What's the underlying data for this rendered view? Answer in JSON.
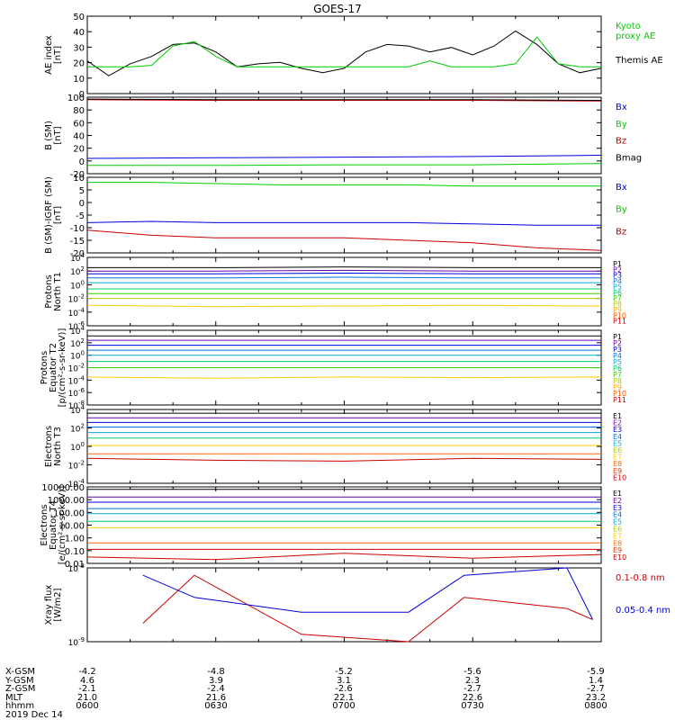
{
  "title": "GOES-17",
  "date": "2019 Dec 14",
  "colors": {
    "black": "#000000",
    "green": "#00cc00",
    "blue": "#0000dd",
    "red": "#cc0000"
  },
  "chart_data": [
    {
      "type": "line",
      "ylabel": "AE index\n[nT]",
      "yticks": [
        "0",
        "10",
        "20",
        "30",
        "40",
        "50"
      ],
      "ylim": [
        0,
        52
      ],
      "x": [
        0,
        5,
        10,
        15,
        20,
        25,
        30,
        35,
        40,
        45,
        50,
        55,
        60,
        65,
        70,
        75,
        80,
        85,
        90,
        95,
        100,
        105,
        110,
        115,
        120
      ],
      "series": [
        {
          "name": "Themis AE",
          "color": "black",
          "values": [
            22,
            12,
            20,
            25,
            33,
            34,
            28,
            18,
            20,
            21,
            17,
            14,
            17,
            28,
            33,
            32,
            28,
            31,
            26,
            32,
            42,
            33,
            20,
            14,
            17
          ]
        },
        {
          "name": "Kyoto proxy AE",
          "color": "green",
          "values": [
            18,
            18,
            18,
            19,
            32,
            35,
            25,
            18,
            18,
            18,
            18,
            18,
            18,
            18,
            18,
            18,
            22,
            18,
            18,
            18,
            20,
            38,
            20,
            18,
            18
          ]
        }
      ],
      "legend": [
        {
          "text": "Kyoto\nproxy AE",
          "color": "green"
        },
        {
          "text": "Themis AE",
          "color": "black"
        }
      ]
    },
    {
      "type": "line",
      "ylabel": "B (SM)\n[nT]",
      "yticks": [
        "-20",
        "0",
        "20",
        "40",
        "60",
        "80",
        "100"
      ],
      "ylim": [
        -20,
        100
      ],
      "x": [
        0,
        30,
        60,
        90,
        120
      ],
      "series": [
        {
          "name": "Bx",
          "color": "blue",
          "values": [
            4,
            5,
            6,
            7,
            9
          ]
        },
        {
          "name": "By",
          "color": "green",
          "values": [
            -7,
            -7,
            -6,
            -6,
            -4
          ]
        },
        {
          "name": "Bz",
          "color": "red",
          "values": [
            96,
            95,
            95,
            95,
            94
          ]
        },
        {
          "name": "Bmag",
          "color": "black",
          "values": [
            97,
            96,
            96,
            96,
            95
          ]
        }
      ],
      "legend": [
        {
          "text": "Bx",
          "color": "blue"
        },
        {
          "text": "By",
          "color": "green"
        },
        {
          "text": "Bz",
          "color": "red"
        },
        {
          "text": "Bmag",
          "color": "black"
        }
      ]
    },
    {
      "type": "line",
      "ylabel": "B (SM)-IGRF (SM)\n[nT]",
      "yticks": [
        "-20",
        "-15",
        "-10",
        "-5",
        "0",
        "5",
        "10"
      ],
      "ylim": [
        -20,
        10
      ],
      "x": [
        0,
        15,
        30,
        45,
        60,
        75,
        90,
        105,
        120
      ],
      "series": [
        {
          "name": "Bx",
          "color": "blue",
          "values": [
            -8,
            -7.5,
            -8,
            -8,
            -8,
            -8,
            -8.5,
            -9,
            -9
          ]
        },
        {
          "name": "By",
          "color": "green",
          "values": [
            8,
            8,
            7.5,
            7,
            7,
            7,
            6.5,
            6.5,
            6.5
          ]
        },
        {
          "name": "Bz",
          "color": "red",
          "values": [
            -11,
            -13,
            -14,
            -14,
            -14,
            -15,
            -16,
            -18,
            -19
          ]
        }
      ],
      "legend": [
        {
          "text": "Bx",
          "color": "blue"
        },
        {
          "text": "By",
          "color": "green"
        },
        {
          "text": "Bz",
          "color": "red"
        }
      ]
    },
    {
      "type": "line",
      "ylabel": "Protons\nNorth T1",
      "log": true,
      "yticks": [
        "10^-6",
        "10^-4",
        "10^-2",
        "10^0",
        "10^2",
        "10^4"
      ],
      "ylim": [
        -6,
        4
      ],
      "x": [
        0,
        30,
        60,
        90,
        120
      ],
      "series": [
        {
          "name": "P1",
          "color": "#000000",
          "values": [
            2.5,
            2.5,
            2.6,
            2.5,
            2.5
          ]
        },
        {
          "name": "P2",
          "color": "#6a00a8",
          "values": [
            2.0,
            2.0,
            2.1,
            2.0,
            2.0
          ]
        },
        {
          "name": "P3",
          "color": "#0000dd",
          "values": [
            1.6,
            1.6,
            1.7,
            1.6,
            1.6
          ]
        },
        {
          "name": "P4",
          "color": "#0070dd",
          "values": [
            1.0,
            1.0,
            1.1,
            1.0,
            1.0
          ]
        },
        {
          "name": "P5",
          "color": "#00aadd",
          "values": [
            0.3,
            0.3,
            0.3,
            0.3,
            0.3
          ]
        },
        {
          "name": "P6",
          "color": "#00cc66",
          "values": [
            -0.6,
            -0.6,
            -0.6,
            -0.6,
            -0.6
          ]
        },
        {
          "name": "P7",
          "color": "#33cc00",
          "values": [
            -1.3,
            -1.3,
            -1.3,
            -1.3,
            -1.3
          ]
        },
        {
          "name": "P8",
          "color": "#aacc00",
          "values": [
            -2.0,
            -2.0,
            -2.0,
            -2.0,
            -2.0
          ]
        },
        {
          "name": "P9",
          "color": "#ffcc00",
          "values": [
            -3.0,
            -3.2,
            -3.1,
            -3.0,
            -3.1
          ]
        }
      ],
      "legend": [
        {
          "text": "P1",
          "color": "#000000"
        },
        {
          "text": "P2",
          "color": "#6a00a8"
        },
        {
          "text": "P3",
          "color": "#0000dd"
        },
        {
          "text": "P4",
          "color": "#0070dd"
        },
        {
          "text": "P5",
          "color": "#00aadd"
        },
        {
          "text": "P6",
          "color": "#00cc66"
        },
        {
          "text": "P7",
          "color": "#33cc00"
        },
        {
          "text": "P8",
          "color": "#aacc00"
        },
        {
          "text": "P9",
          "color": "#ffaa00"
        },
        {
          "text": "P10",
          "color": "#ee5500"
        },
        {
          "text": "P11",
          "color": "#cc0000"
        }
      ]
    },
    {
      "type": "line",
      "ylabel": "Protons\nEquator T2\n[p/(cm²-s-sr-keV)]",
      "log": true,
      "yticks": [
        "10^-8",
        "10^-6",
        "10^-4",
        "10^-2",
        "10^0",
        "10^2",
        "10^4"
      ],
      "ylim": [
        -8,
        4
      ],
      "x": [
        0,
        30,
        60,
        90,
        120
      ],
      "series": [
        {
          "name": "P1",
          "color": "#000000",
          "values": [
            3.1,
            3.1,
            3.1,
            3.1,
            3.1
          ]
        },
        {
          "name": "P2",
          "color": "#6a00a8",
          "values": [
            2.4,
            2.4,
            2.4,
            2.4,
            2.4
          ]
        },
        {
          "name": "P3",
          "color": "#0000dd",
          "values": [
            1.6,
            1.6,
            1.6,
            1.6,
            1.6
          ]
        },
        {
          "name": "P4",
          "color": "#0070dd",
          "values": [
            0.8,
            0.8,
            0.8,
            0.8,
            0.8
          ]
        },
        {
          "name": "P5",
          "color": "#00aadd",
          "values": [
            0.0,
            0.0,
            0.0,
            0.0,
            0.0
          ]
        },
        {
          "name": "P6",
          "color": "#00cc66",
          "values": [
            -1.0,
            -1.0,
            -1.0,
            -1.0,
            -1.0
          ]
        },
        {
          "name": "P7",
          "color": "#33cc00",
          "values": [
            -2.0,
            -2.0,
            -2.0,
            -2.0,
            -2.0
          ]
        },
        {
          "name": "P8",
          "color": "#ffcc00",
          "values": [
            -3.5,
            -3.7,
            -3.5,
            -3.6,
            -3.5
          ]
        }
      ],
      "legend": [
        {
          "text": "P1",
          "color": "#000000"
        },
        {
          "text": "P2",
          "color": "#6a00a8"
        },
        {
          "text": "P3",
          "color": "#0000dd"
        },
        {
          "text": "P4",
          "color": "#0070dd"
        },
        {
          "text": "P5",
          "color": "#00aadd"
        },
        {
          "text": "P6",
          "color": "#00cc66"
        },
        {
          "text": "P7",
          "color": "#33cc00"
        },
        {
          "text": "P8",
          "color": "#aacc00"
        },
        {
          "text": "P9",
          "color": "#ffaa00"
        },
        {
          "text": "P10",
          "color": "#ee5500"
        },
        {
          "text": "P11",
          "color": "#cc0000"
        }
      ]
    },
    {
      "type": "line",
      "ylabel": "Electrons\nNorth T3",
      "log": true,
      "yticks": [
        "10^-4",
        "10^-2",
        "10^0",
        "10^2",
        "10^4"
      ],
      "ylim": [
        -4,
        4
      ],
      "x": [
        0,
        30,
        60,
        90,
        120
      ],
      "series": [
        {
          "name": "E1",
          "color": "#000000",
          "values": [
            3.6,
            3.6,
            3.6,
            3.6,
            3.6
          ]
        },
        {
          "name": "E2",
          "color": "#6a00a8",
          "values": [
            3.1,
            3.1,
            3.1,
            3.1,
            3.1
          ]
        },
        {
          "name": "E3",
          "color": "#0000dd",
          "values": [
            2.6,
            2.6,
            2.6,
            2.6,
            2.6
          ]
        },
        {
          "name": "E4",
          "color": "#0070dd",
          "values": [
            2.1,
            2.1,
            2.1,
            2.1,
            2.1
          ]
        },
        {
          "name": "E5",
          "color": "#00aadd",
          "values": [
            1.5,
            1.5,
            1.5,
            1.5,
            1.5
          ]
        },
        {
          "name": "E6",
          "color": "#00cc66",
          "values": [
            0.9,
            0.9,
            0.9,
            0.9,
            0.9
          ]
        },
        {
          "name": "E7",
          "color": "#ffcc00",
          "values": [
            0.1,
            0.1,
            0.1,
            0.1,
            0.1
          ]
        },
        {
          "name": "E8",
          "color": "#ff6600",
          "values": [
            -0.8,
            -0.8,
            -0.8,
            -0.8,
            -0.8
          ]
        },
        {
          "name": "E9",
          "color": "#cc0000",
          "values": [
            -1.3,
            -1.5,
            -1.6,
            -1.3,
            -1.4
          ]
        }
      ],
      "legend": [
        {
          "text": "E1",
          "color": "#000000"
        },
        {
          "text": "E2",
          "color": "#6a00a8"
        },
        {
          "text": "E3",
          "color": "#0000dd"
        },
        {
          "text": "E4",
          "color": "#0070dd"
        },
        {
          "text": "E5",
          "color": "#00aadd"
        },
        {
          "text": "E6",
          "color": "#aacc00"
        },
        {
          "text": "E7",
          "color": "#ffcc00"
        },
        {
          "text": "E8",
          "color": "#ff6600"
        },
        {
          "text": "E9",
          "color": "#ee3300"
        },
        {
          "text": "E10",
          "color": "#cc0000"
        }
      ]
    },
    {
      "type": "line",
      "ylabel": "Electrons\nEquator T4\n[e/(cm²-s-sr-keV)]",
      "log": true,
      "yticks": [
        "0.01",
        "0.10",
        "1.00",
        "10.00",
        "100.00",
        "1000.00",
        "10000.00"
      ],
      "ylim": [
        -2,
        4
      ],
      "x": [
        0,
        30,
        60,
        90,
        120
      ],
      "series": [
        {
          "name": "E1",
          "color": "#000000",
          "values": [
            3.8,
            3.8,
            3.8,
            3.8,
            3.8
          ]
        },
        {
          "name": "E2",
          "color": "#6a00a8",
          "values": [
            3.2,
            3.2,
            3.2,
            3.2,
            3.2
          ]
        },
        {
          "name": "E3",
          "color": "#0000dd",
          "values": [
            2.8,
            2.8,
            2.8,
            2.8,
            2.8
          ]
        },
        {
          "name": "E4",
          "color": "#0070dd",
          "values": [
            2.3,
            2.3,
            2.3,
            2.3,
            2.3
          ]
        },
        {
          "name": "E5",
          "color": "#00aadd",
          "values": [
            1.9,
            1.9,
            1.9,
            1.9,
            1.9
          ]
        },
        {
          "name": "E6",
          "color": "#00cc66",
          "values": [
            1.3,
            1.3,
            1.3,
            1.3,
            1.3
          ]
        },
        {
          "name": "E7",
          "color": "#ffcc00",
          "values": [
            0.8,
            0.8,
            0.8,
            0.8,
            0.8
          ]
        },
        {
          "name": "E8",
          "color": "#ff6600",
          "values": [
            -0.4,
            -0.4,
            -0.4,
            -0.4,
            -0.4
          ]
        },
        {
          "name": "E9",
          "color": "#cc0000",
          "values": [
            -0.9,
            -0.9,
            -0.9,
            -0.9,
            -0.9
          ]
        },
        {
          "name": "E10",
          "color": "#cc0000",
          "values": [
            -1.5,
            -1.7,
            -1.2,
            -1.6,
            -1.3
          ]
        }
      ],
      "legend": [
        {
          "text": "E1",
          "color": "#000000"
        },
        {
          "text": "E2",
          "color": "#6a00a8"
        },
        {
          "text": "E3",
          "color": "#0000dd"
        },
        {
          "text": "E4",
          "color": "#0070dd"
        },
        {
          "text": "E5",
          "color": "#00aadd"
        },
        {
          "text": "E6",
          "color": "#aacc00"
        },
        {
          "text": "E7",
          "color": "#ffcc00"
        },
        {
          "text": "E8",
          "color": "#ff6600"
        },
        {
          "text": "E9",
          "color": "#ee3300"
        },
        {
          "text": "E10",
          "color": "#cc0000"
        }
      ]
    },
    {
      "type": "line",
      "ylabel": "Xray flux\n[W/m2]",
      "log": true,
      "yticks": [
        "10^-9",
        "10^-8"
      ],
      "ylim": [
        -9,
        -8
      ],
      "x": [
        13,
        25,
        50,
        75,
        88,
        112,
        118
      ],
      "series": [
        {
          "name": "0.1-0.8 nm",
          "color": "red",
          "values": [
            -8.75,
            -8.1,
            -8.9,
            -9.0,
            -8.4,
            -8.55,
            -8.7
          ]
        },
        {
          "name": "0.05-0.4 nm",
          "color": "blue",
          "values": [
            -8.1,
            -8.4,
            -8.6,
            -8.6,
            -8.1,
            -8.0,
            -8.7
          ]
        }
      ],
      "legend": [
        {
          "text": "0.1-0.8 nm",
          "color": "red"
        },
        {
          "text": "0.05-0.4 nm",
          "color": "blue"
        }
      ]
    }
  ],
  "footer": {
    "rows": [
      {
        "label": "X-GSM",
        "values": [
          "-4.2",
          "-4.8",
          "-5.2",
          "-5.6",
          "-5.9"
        ]
      },
      {
        "label": "Y-GSM",
        "values": [
          "4.6",
          "3.9",
          "3.1",
          "2.3",
          "1.4"
        ]
      },
      {
        "label": "Z-GSM",
        "values": [
          "-2.1",
          "-2.4",
          "-2.6",
          "-2.7",
          "-2.7"
        ]
      },
      {
        "label": "MLT",
        "values": [
          "21.0",
          "21.6",
          "22.1",
          "22.6",
          "23.2"
        ]
      },
      {
        "label": "hhmm",
        "values": [
          "0600",
          "0630",
          "0700",
          "0730",
          "0800"
        ]
      }
    ]
  }
}
